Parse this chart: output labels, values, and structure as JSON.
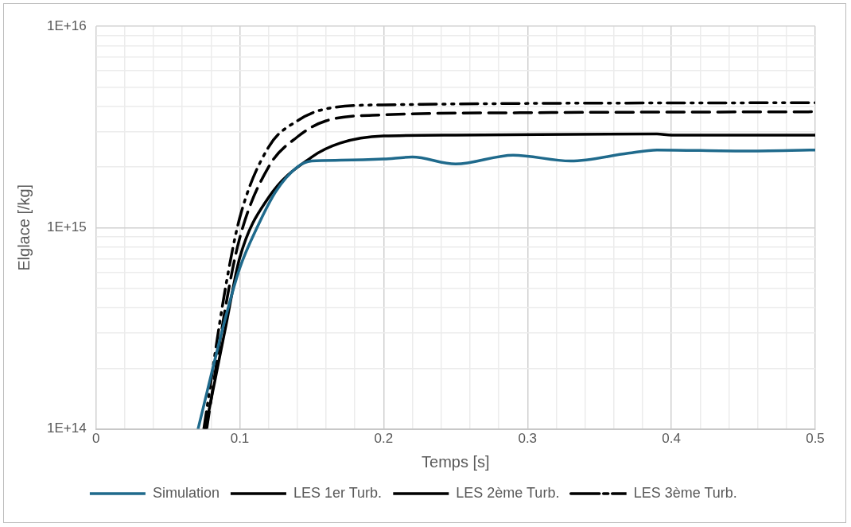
{
  "chart_data": {
    "type": "line",
    "xlabel": "Temps [s]",
    "ylabel": "Elglace [/kg]",
    "log": "y",
    "grid": true,
    "legend": "bottom",
    "marker": "none",
    "xlim": [
      0,
      0.5
    ],
    "xticks": [
      0,
      {
        "value": 0.02,
        "label": null
      },
      {
        "value": 0.04,
        "label": null
      },
      {
        "value": 0.06,
        "label": null
      },
      {
        "value": 0.08,
        "label": null
      },
      0.1,
      {
        "value": 0.12,
        "label": null
      },
      {
        "value": 0.14,
        "label": null
      },
      {
        "value": 0.16,
        "label": null
      },
      {
        "value": 0.18,
        "label": null
      },
      0.2,
      {
        "value": 0.22,
        "label": null
      },
      {
        "value": 0.24,
        "label": null
      },
      {
        "value": 0.26,
        "label": null
      },
      {
        "value": 0.28,
        "label": null
      },
      0.3,
      {
        "value": 0.32,
        "label": null
      },
      {
        "value": 0.34,
        "label": null
      },
      {
        "value": 0.36,
        "label": null
      },
      {
        "value": 0.38,
        "label": null
      },
      0.4,
      {
        "value": 0.42,
        "label": null
      },
      {
        "value": 0.44,
        "label": null
      },
      {
        "value": 0.46,
        "label": null
      },
      {
        "value": 0.48,
        "label": null
      },
      0.5
    ],
    "ylim": [
      100000000000000.0,
      1e+16
    ],
    "yticks": [
      {
        "value": 100000000000000.0,
        "label": "1E+14"
      },
      {
        "value": 200000000000000.0,
        "label": null
      },
      {
        "value": 300000000000000.0,
        "label": null
      },
      {
        "value": 400000000000000.0,
        "label": null
      },
      {
        "value": 500000000000000.0,
        "label": null
      },
      {
        "value": 600000000000000.0,
        "label": null
      },
      {
        "value": 700000000000000.0,
        "label": null
      },
      {
        "value": 800000000000000.0,
        "label": null
      },
      {
        "value": 900000000000000.0,
        "label": null
      },
      {
        "value": 1000000000000000.0,
        "label": "1E+15"
      },
      {
        "value": 2000000000000000.0,
        "label": null
      },
      {
        "value": 3000000000000000.0,
        "label": null
      },
      {
        "value": 4000000000000000.0,
        "label": null
      },
      {
        "value": 5000000000000000.0,
        "label": null
      },
      {
        "value": 6000000000000000.0,
        "label": null
      },
      {
        "value": 7000000000000000.0,
        "label": null
      },
      {
        "value": 8000000000000000.0,
        "label": null
      },
      {
        "value": 9000000000000000.0,
        "label": null
      },
      {
        "value": 1e+16,
        "label": "1E+16"
      }
    ],
    "series": [
      {
        "name": "Simulation",
        "color": "#1f6a8c",
        "line_style": "solid",
        "x": [
          0.071,
          0.09,
          0.1,
          0.112,
          0.125,
          0.14,
          0.15,
          0.17,
          0.2,
          0.22,
          0.25,
          0.29,
          0.33,
          0.37,
          0.39,
          0.45,
          0.5
        ],
        "values": [
          100000000000000.0,
          355000000000000.0,
          630000000000000.0,
          1000000000000000.0,
          1510000000000000.0,
          2000000000000000.0,
          2140000000000000.0,
          2160000000000000.0,
          2190000000000000.0,
          2240000000000000.0,
          2070000000000000.0,
          2290000000000000.0,
          2140000000000000.0,
          2340000000000000.0,
          2430000000000000.0,
          2400000000000000.0,
          2430000000000000.0
        ]
      },
      {
        "name": "LES 1er Turb.",
        "color": "#000000",
        "line_style": "solid",
        "x": [
          0.076,
          0.09,
          0.1,
          0.12,
          0.15,
          0.17,
          0.2,
          0.25,
          0.39,
          0.4,
          0.5
        ],
        "values": [
          100000000000000.0,
          316000000000000.0,
          710000000000000.0,
          1410000000000000.0,
          2240000000000000.0,
          2630000000000000.0,
          2850000000000000.0,
          2880000000000000.0,
          2920000000000000.0,
          2880000000000000.0,
          2880000000000000.0
        ]
      },
      {
        "name": "LES 2ème Turb.",
        "color": "#000000",
        "line_style": "dashed",
        "x": [
          0.077,
          0.09,
          0.1,
          0.12,
          0.14,
          0.16,
          0.2,
          0.3,
          0.5
        ],
        "values": [
          100000000000000.0,
          400000000000000.0,
          890000000000000.0,
          2000000000000000.0,
          2820000000000000.0,
          3390000000000000.0,
          3630000000000000.0,
          3720000000000000.0,
          3760000000000000.0
        ]
      },
      {
        "name": "LES 3ème Turb.",
        "color": "#000000",
        "line_style": "dashdot",
        "x": [
          0.075,
          0.09,
          0.1,
          0.12,
          0.14,
          0.16,
          0.2,
          0.5
        ],
        "values": [
          100000000000000.0,
          500000000000000.0,
          1120000000000000.0,
          2510000000000000.0,
          3390000000000000.0,
          3890000000000000.0,
          4070000000000000.0,
          4170000000000000.0
        ]
      }
    ]
  }
}
